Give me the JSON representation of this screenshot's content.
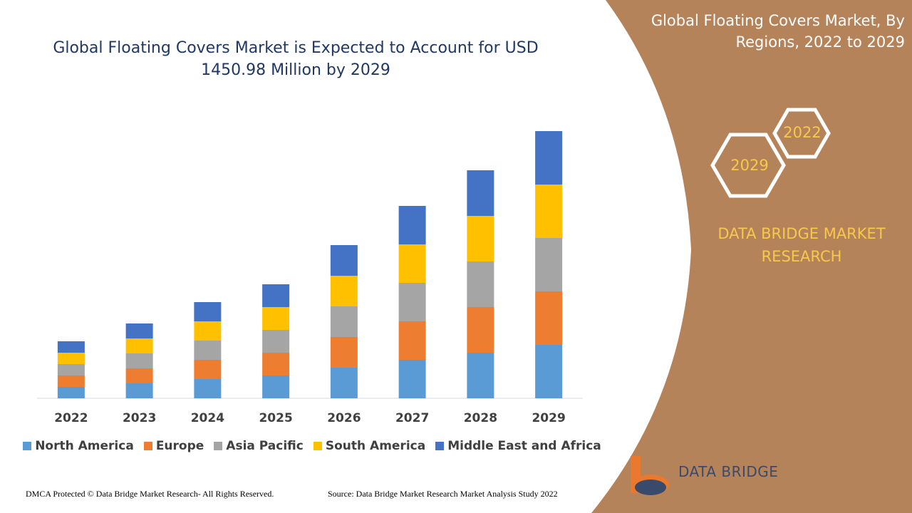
{
  "chart_data": {
    "type": "stacked_bar",
    "title": "Global Floating Covers Market is Expected to Account for USD 1450.98 Million by 2029",
    "categories": [
      "2022",
      "2023",
      "2024",
      "2025",
      "2026",
      "2027",
      "2028",
      "2029"
    ],
    "series": [
      {
        "name": "North America",
        "color": "#5b9bd5",
        "values": [
          16,
          21,
          27,
          32,
          43,
          54,
          64,
          75
        ]
      },
      {
        "name": "Europe",
        "color": "#ed7d31",
        "values": [
          16,
          21,
          27,
          32,
          43,
          54,
          64,
          75
        ]
      },
      {
        "name": "Asia Pacific",
        "color": "#a5a5a5",
        "values": [
          16,
          21,
          27,
          32,
          43,
          54,
          64,
          75
        ]
      },
      {
        "name": "South America",
        "color": "#ffc000",
        "values": [
          16,
          21,
          27,
          32,
          43,
          54,
          64,
          75
        ]
      },
      {
        "name": "Middle East and Africa",
        "color": "#4472c4",
        "values": [
          16,
          21,
          27,
          32,
          43,
          54,
          64,
          75
        ]
      }
    ],
    "ylim": [
      0,
      400
    ],
    "legend": "bottom"
  },
  "panel": {
    "title": "Global Floating Covers Market, By Regions, 2022 to 2029",
    "hexagons": [
      "2022",
      "2029"
    ],
    "brand": "DATA BRIDGE MARKET RESEARCH"
  },
  "logo": {
    "text": "DATA BRIDGE"
  },
  "footer": {
    "copyright": "DMCA Protected © Data Bridge Market Research- All Rights Reserved.",
    "source": "Source: Data Bridge Market Research Market Analysis Study 2022"
  }
}
